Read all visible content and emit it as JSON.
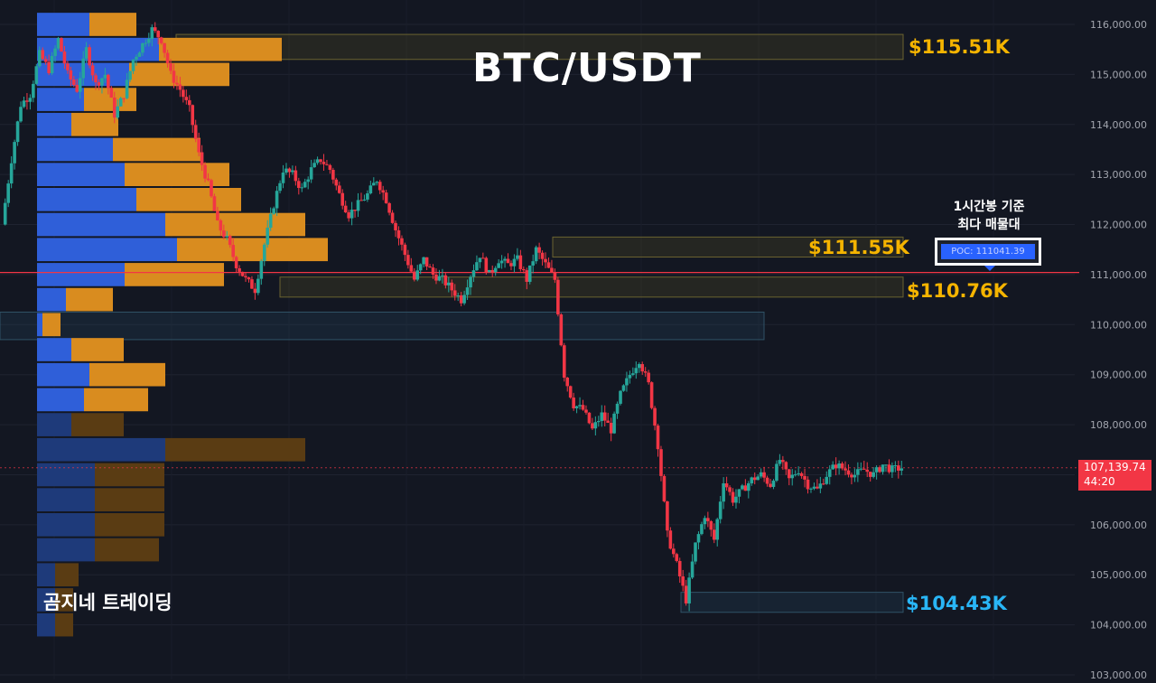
{
  "chart_data": {
    "type": "candlestick",
    "title": "BTC/USDT",
    "watermark": "곰지네 트레이딩",
    "ylim": [
      103000,
      116400
    ],
    "yticks": [
      "116,000.00",
      "115,000.00",
      "114,000.00",
      "113,000.00",
      "112,000.00",
      "111,000.00",
      "110,000.00",
      "109,000.00",
      "108,000.00",
      "107,000.00",
      "106,000.00",
      "105,000.00",
      "104,000.00",
      "103,000.00"
    ],
    "ytick_values": [
      116000,
      115000,
      114000,
      113000,
      112000,
      111000,
      110000,
      109000,
      108000,
      107000,
      106000,
      105000,
      104000,
      103000
    ],
    "current_price": {
      "price_label": "107,139.74",
      "countdown": "44:20",
      "value": 107139.74,
      "color": "#f23645"
    },
    "poc": {
      "note_line1": "1시간봉 기준",
      "note_line2": "최다 매물대",
      "label": "POC: 111041.39",
      "value": 111041.39,
      "color": "#f23645"
    },
    "levels": [
      {
        "label": "$115.51K",
        "value": 115510,
        "color": "#f5b400"
      },
      {
        "label": "$111.55K",
        "value": 111550,
        "color": "#f5b400"
      },
      {
        "label": "$110.76K",
        "value": 110760,
        "color": "#f5b400"
      },
      {
        "label": "$104.43K",
        "value": 104430,
        "color": "#29b6f6"
      }
    ],
    "zones": [
      {
        "low": 115300,
        "high": 115800,
        "style": "yellow"
      },
      {
        "low": 111350,
        "high": 111750,
        "style": "yellow"
      },
      {
        "low": 110550,
        "high": 110950,
        "style": "yellow"
      },
      {
        "low": 109700,
        "high": 110250,
        "style": "teal"
      },
      {
        "low": 104250,
        "high": 104650,
        "style": "teal"
      }
    ],
    "volume_profile": [
      {
        "low": 115750,
        "high": 116250,
        "buy": 58,
        "sell": 52
      },
      {
        "low": 115250,
        "high": 115750,
        "buy": 135,
        "sell": 136
      },
      {
        "low": 114750,
        "high": 115250,
        "buy": 102,
        "sell": 111
      },
      {
        "low": 114250,
        "high": 114750,
        "buy": 52,
        "sell": 58
      },
      {
        "low": 113750,
        "high": 114250,
        "buy": 38,
        "sell": 52
      },
      {
        "low": 113250,
        "high": 113750,
        "buy": 84,
        "sell": 97
      },
      {
        "low": 112750,
        "high": 113250,
        "buy": 97,
        "sell": 116
      },
      {
        "low": 112250,
        "high": 112750,
        "buy": 110,
        "sell": 116
      },
      {
        "low": 111750,
        "high": 112250,
        "buy": 142,
        "sell": 155
      },
      {
        "low": 111250,
        "high": 111750,
        "buy": 155,
        "sell": 167
      },
      {
        "low": 110750,
        "high": 111250,
        "buy": 97,
        "sell": 110
      },
      {
        "low": 110250,
        "high": 110750,
        "buy": 32,
        "sell": 52
      },
      {
        "low": 109750,
        "high": 110250,
        "buy": 6,
        "sell": 20
      },
      {
        "low": 109250,
        "high": 109750,
        "buy": 38,
        "sell": 58
      },
      {
        "low": 108750,
        "high": 109250,
        "buy": 58,
        "sell": 84
      },
      {
        "low": 108250,
        "high": 108750,
        "buy": 52,
        "sell": 71
      },
      {
        "low": 107750,
        "high": 108250,
        "buy": 38,
        "sell": 58
      },
      {
        "low": 107250,
        "high": 107750,
        "buy": 142,
        "sell": 155
      },
      {
        "low": 106750,
        "high": 107250,
        "buy": 64,
        "sell": 77
      },
      {
        "low": 106250,
        "high": 106750,
        "buy": 64,
        "sell": 77
      },
      {
        "low": 105750,
        "high": 106250,
        "buy": 64,
        "sell": 77
      },
      {
        "low": 105250,
        "high": 105750,
        "buy": 64,
        "sell": 71
      },
      {
        "low": 104750,
        "high": 105250,
        "buy": 20,
        "sell": 26
      },
      {
        "low": 104250,
        "high": 104750,
        "buy": 20,
        "sell": 20
      },
      {
        "low": 103750,
        "high": 104250,
        "buy": 20,
        "sell": 20
      }
    ],
    "anchors": [
      112000,
      113300,
      114400,
      114600,
      115400,
      115100,
      115700,
      115000,
      114700,
      115500,
      114800,
      115000,
      114200,
      114600,
      115300,
      115600,
      115900,
      115700,
      115000,
      114700,
      114300,
      113400,
      112800,
      112000,
      111700,
      111200,
      110900,
      110700,
      111600,
      112400,
      113100,
      113000,
      112700,
      113100,
      113300,
      113100,
      112600,
      112200,
      112400,
      112600,
      112900,
      112500,
      111900,
      111400,
      110900,
      111300,
      111000,
      110900,
      110700,
      110500,
      111000,
      111400,
      111000,
      111300,
      111200,
      111300,
      110900,
      111500,
      111200,
      110900,
      109000,
      108400,
      108300,
      107900,
      108200,
      107900,
      108600,
      109000,
      109300,
      108800,
      107600,
      105800,
      105200,
      104500,
      105600,
      106200,
      105700,
      106900,
      106500,
      106700,
      106900,
      107000,
      106800,
      107300,
      106900,
      107100,
      106800,
      106700,
      107000,
      107200,
      107100,
      107000,
      107100,
      107000,
      107200,
      107100,
      107140
    ],
    "candle_color_up": "#26a69a",
    "candle_color_down": "#f23645"
  }
}
